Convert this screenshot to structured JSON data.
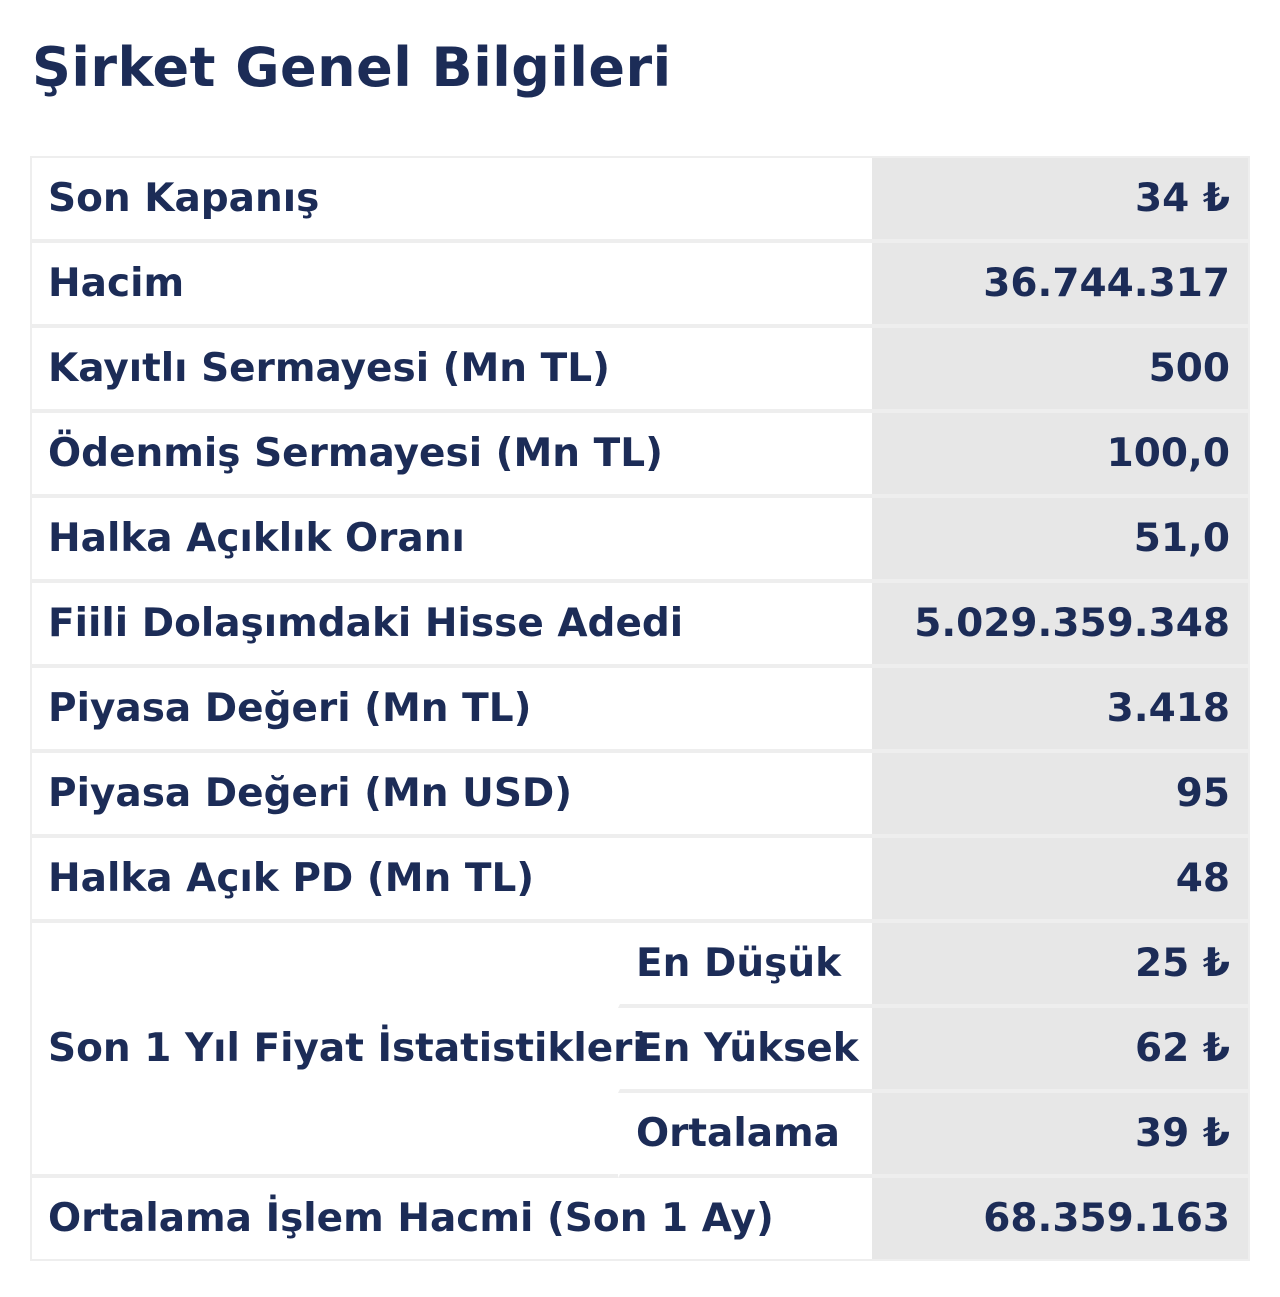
{
  "title": "Şirket Genel Bilgileri",
  "rows": [
    {
      "label": "Son Kapanış",
      "value": "34 ₺"
    },
    {
      "label": "Hacim",
      "value": "36.744.317"
    },
    {
      "label": "Kayıtlı Sermayesi (Mn TL)",
      "value": "500"
    },
    {
      "label": "Ödenmiş Sermayesi (Mn TL)",
      "value": "100,0"
    },
    {
      "label": "Halka Açıklık Oranı",
      "value": "51,0"
    },
    {
      "label": "Fiili Dolaşımdaki Hisse Adedi",
      "value": "5.029.359.348"
    },
    {
      "label": "Piyasa Değeri (Mn TL)",
      "value": "3.418"
    },
    {
      "label": "Piyasa Değeri (Mn USD)",
      "value": "95"
    },
    {
      "label": "Halka Açık PD (Mn TL)",
      "value": "48"
    }
  ],
  "price_stats": {
    "label": "Son 1 Yıl Fiyat İstatistikleri",
    "items": [
      {
        "label": "En Düşük",
        "value": "25 ₺"
      },
      {
        "label": "En Yüksek",
        "value": "62 ₺"
      },
      {
        "label": "Ortalama",
        "value": "39 ₺"
      }
    ]
  },
  "avg_volume": {
    "label": "Ortalama İşlem Hacmi (Son 1 Ay)",
    "value": "68.359.163"
  }
}
